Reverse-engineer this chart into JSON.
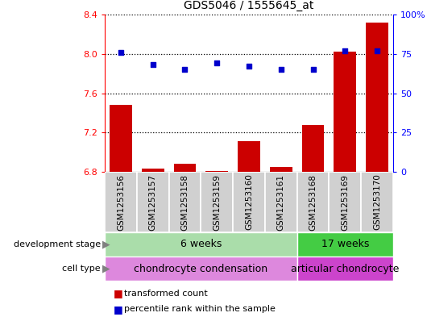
{
  "title": "GDS5046 / 1555645_at",
  "samples": [
    "GSM1253156",
    "GSM1253157",
    "GSM1253158",
    "GSM1253159",
    "GSM1253160",
    "GSM1253161",
    "GSM1253168",
    "GSM1253169",
    "GSM1253170"
  ],
  "transformed_count": [
    7.48,
    6.83,
    6.88,
    6.81,
    7.11,
    6.85,
    7.28,
    8.02,
    8.32
  ],
  "percentile_rank": [
    76,
    68,
    65,
    69,
    67,
    65,
    65,
    77,
    77
  ],
  "ylim_left": [
    6.8,
    8.4
  ],
  "yticks_left": [
    6.8,
    7.2,
    7.6,
    8.0,
    8.4
  ],
  "yticks_right": [
    0,
    25,
    50,
    75,
    100
  ],
  "bar_color": "#cc0000",
  "dot_color": "#0000cc",
  "development_stage_groups": [
    {
      "label": "6 weeks",
      "start": 0,
      "end": 6,
      "color": "#aaddaa"
    },
    {
      "label": "17 weeks",
      "start": 6,
      "end": 9,
      "color": "#44cc44"
    }
  ],
  "cell_type_groups": [
    {
      "label": "chondrocyte condensation",
      "start": 0,
      "end": 6,
      "color": "#dd88dd"
    },
    {
      "label": "articular chondrocyte",
      "start": 6,
      "end": 9,
      "color": "#cc44cc"
    }
  ],
  "row_labels": [
    "development stage",
    "cell type"
  ],
  "legend_items": [
    {
      "color": "#cc0000",
      "label": "transformed count"
    },
    {
      "color": "#0000cc",
      "label": "percentile rank within the sample"
    }
  ]
}
